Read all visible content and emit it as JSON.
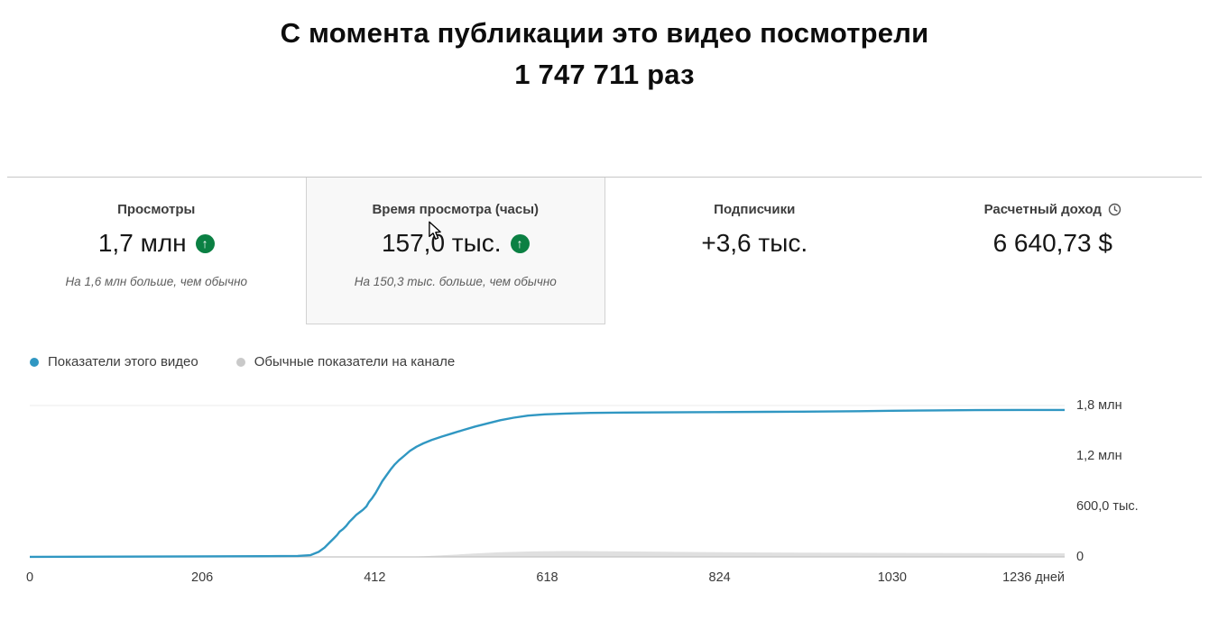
{
  "header": {
    "title_line1": "С момента публикации это видео посмотрели",
    "title_line2": "1 747 711 раз"
  },
  "metrics": {
    "tabs": [
      {
        "label": "Просмотры",
        "value": "1,7 млн",
        "trend": "up",
        "subtitle": "На 1,6 млн больше, чем обычно",
        "selected": false
      },
      {
        "label": "Время просмотра (часы)",
        "value": "157,0 тыс.",
        "trend": "up",
        "subtitle": "На 150,3 тыс. больше, чем обычно",
        "selected": true
      },
      {
        "label": "Подписчики",
        "value": "+3,6 тыс.",
        "trend": null,
        "subtitle": "",
        "selected": false
      },
      {
        "label": "Расчетный доход",
        "value": "6 640,73 $",
        "trend": null,
        "subtitle": "",
        "selected": false,
        "icon": "clock"
      }
    ]
  },
  "icons": {
    "trend_up": "↑"
  },
  "legend": [
    {
      "label": "Показатели этого видео",
      "color": "#3097c2"
    },
    {
      "label": "Обычные показатели на канале",
      "color": "#c9c9c9"
    }
  ],
  "chart_data": {
    "type": "line",
    "title": "",
    "legend_position": "top-left",
    "grid": "minimal",
    "x_axis": {
      "unit_suffix": " дней",
      "max": 1236,
      "ticks": [
        {
          "value": 0,
          "label": "0"
        },
        {
          "value": 206,
          "label": "206"
        },
        {
          "value": 412,
          "label": "412"
        },
        {
          "value": 618,
          "label": "618"
        },
        {
          "value": 824,
          "label": "824"
        },
        {
          "value": 1030,
          "label": "1030"
        },
        {
          "value": 1236,
          "label": "1236 дней"
        }
      ]
    },
    "y_axis": {
      "max": 1800000,
      "ticks": [
        {
          "value": 0,
          "label": "0"
        },
        {
          "value": 600000,
          "label": "600,0 тыс."
        },
        {
          "value": 1200000,
          "label": "1,2 млн"
        },
        {
          "value": 1800000,
          "label": "1,8 млн"
        }
      ]
    },
    "series": [
      {
        "name": "Обычные показатели на канале",
        "style": "area",
        "color": "#e0e0e0",
        "points": [
          [
            0,
            0
          ],
          [
            440,
            0
          ],
          [
            470,
            8000
          ],
          [
            500,
            22000
          ],
          [
            530,
            40000
          ],
          [
            560,
            55000
          ],
          [
            600,
            65000
          ],
          [
            640,
            70000
          ],
          [
            690,
            68000
          ],
          [
            740,
            63000
          ],
          [
            800,
            58000
          ],
          [
            860,
            54000
          ],
          [
            920,
            51000
          ],
          [
            980,
            49000
          ],
          [
            1050,
            47000
          ],
          [
            1120,
            45000
          ],
          [
            1180,
            44000
          ],
          [
            1236,
            43000
          ]
        ]
      },
      {
        "name": "Показатели этого видео",
        "style": "line",
        "color": "#3097c2",
        "points": [
          [
            0,
            1000
          ],
          [
            100,
            3000
          ],
          [
            200,
            6000
          ],
          [
            280,
            9000
          ],
          [
            320,
            12000
          ],
          [
            335,
            20000
          ],
          [
            345,
            60000
          ],
          [
            352,
            110000
          ],
          [
            358,
            170000
          ],
          [
            363,
            220000
          ],
          [
            367,
            260000
          ],
          [
            370,
            300000
          ],
          [
            374,
            330000
          ],
          [
            378,
            370000
          ],
          [
            382,
            420000
          ],
          [
            386,
            460000
          ],
          [
            390,
            500000
          ],
          [
            394,
            530000
          ],
          [
            398,
            560000
          ],
          [
            402,
            600000
          ],
          [
            405,
            650000
          ],
          [
            409,
            700000
          ],
          [
            413,
            760000
          ],
          [
            417,
            830000
          ],
          [
            421,
            900000
          ],
          [
            426,
            970000
          ],
          [
            431,
            1040000
          ],
          [
            436,
            1100000
          ],
          [
            441,
            1150000
          ],
          [
            447,
            1200000
          ],
          [
            454,
            1260000
          ],
          [
            462,
            1310000
          ],
          [
            470,
            1350000
          ],
          [
            480,
            1390000
          ],
          [
            492,
            1430000
          ],
          [
            505,
            1470000
          ],
          [
            518,
            1510000
          ],
          [
            532,
            1550000
          ],
          [
            548,
            1590000
          ],
          [
            562,
            1625000
          ],
          [
            578,
            1655000
          ],
          [
            595,
            1680000
          ],
          [
            615,
            1695000
          ],
          [
            640,
            1705000
          ],
          [
            670,
            1712000
          ],
          [
            710,
            1716000
          ],
          [
            760,
            1719000
          ],
          [
            820,
            1722000
          ],
          [
            880,
            1725000
          ],
          [
            940,
            1728000
          ],
          [
            990,
            1733000
          ],
          [
            1030,
            1738000
          ],
          [
            1080,
            1742000
          ],
          [
            1130,
            1745000
          ],
          [
            1180,
            1747000
          ],
          [
            1236,
            1748000
          ]
        ]
      }
    ]
  }
}
